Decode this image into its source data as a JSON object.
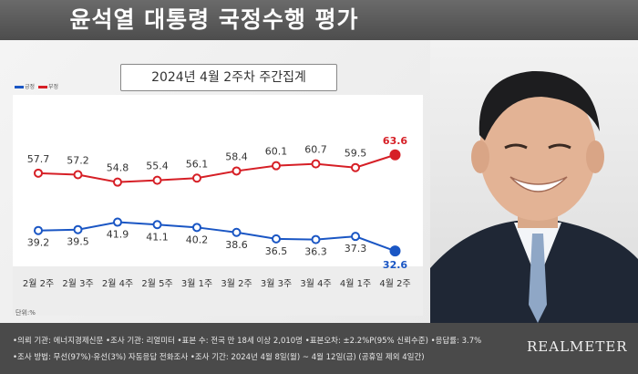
{
  "header": {
    "title": "윤석열 대통령 국정수행 평가"
  },
  "chart_data": {
    "type": "line",
    "title": "2024년 4월 2주차 주간집계",
    "categories": [
      "2월 2주",
      "2월 3주",
      "2월 4주",
      "2월 5주",
      "3월 1주",
      "3월 2주",
      "3월 3주",
      "3월 4주",
      "4월 1주",
      "4월 2주"
    ],
    "series": [
      {
        "name": "부정",
        "color": "#d61f26",
        "values": [
          57.7,
          57.2,
          54.8,
          55.4,
          56.1,
          58.4,
          60.1,
          60.7,
          59.5,
          63.6
        ]
      },
      {
        "name": "긍정",
        "color": "#1a56c4",
        "values": [
          39.2,
          39.5,
          41.9,
          41.1,
          40.2,
          38.6,
          36.5,
          36.3,
          37.3,
          32.6
        ]
      }
    ],
    "legend": {
      "position": "top-left"
    },
    "unit_label": "단위:%",
    "grid": false
  },
  "footer": {
    "line1": "•의뢰 기관: 에너지경제신문 •조사 기관: 리얼미터 •표본 수: 전국 만 18세 이상 2,010명 •표본오차: ±2.2%P(95% 신뢰수준) •응답률: 3.7%",
    "line2": "•조사 방법: 무선(97%)·유선(3%) 자동응답 전화조사 •조사 기간: 2024년 4월 8일(월) ~ 4월 12일(금) (공휴일 제외 4일간)",
    "logo": "REALMETER"
  }
}
